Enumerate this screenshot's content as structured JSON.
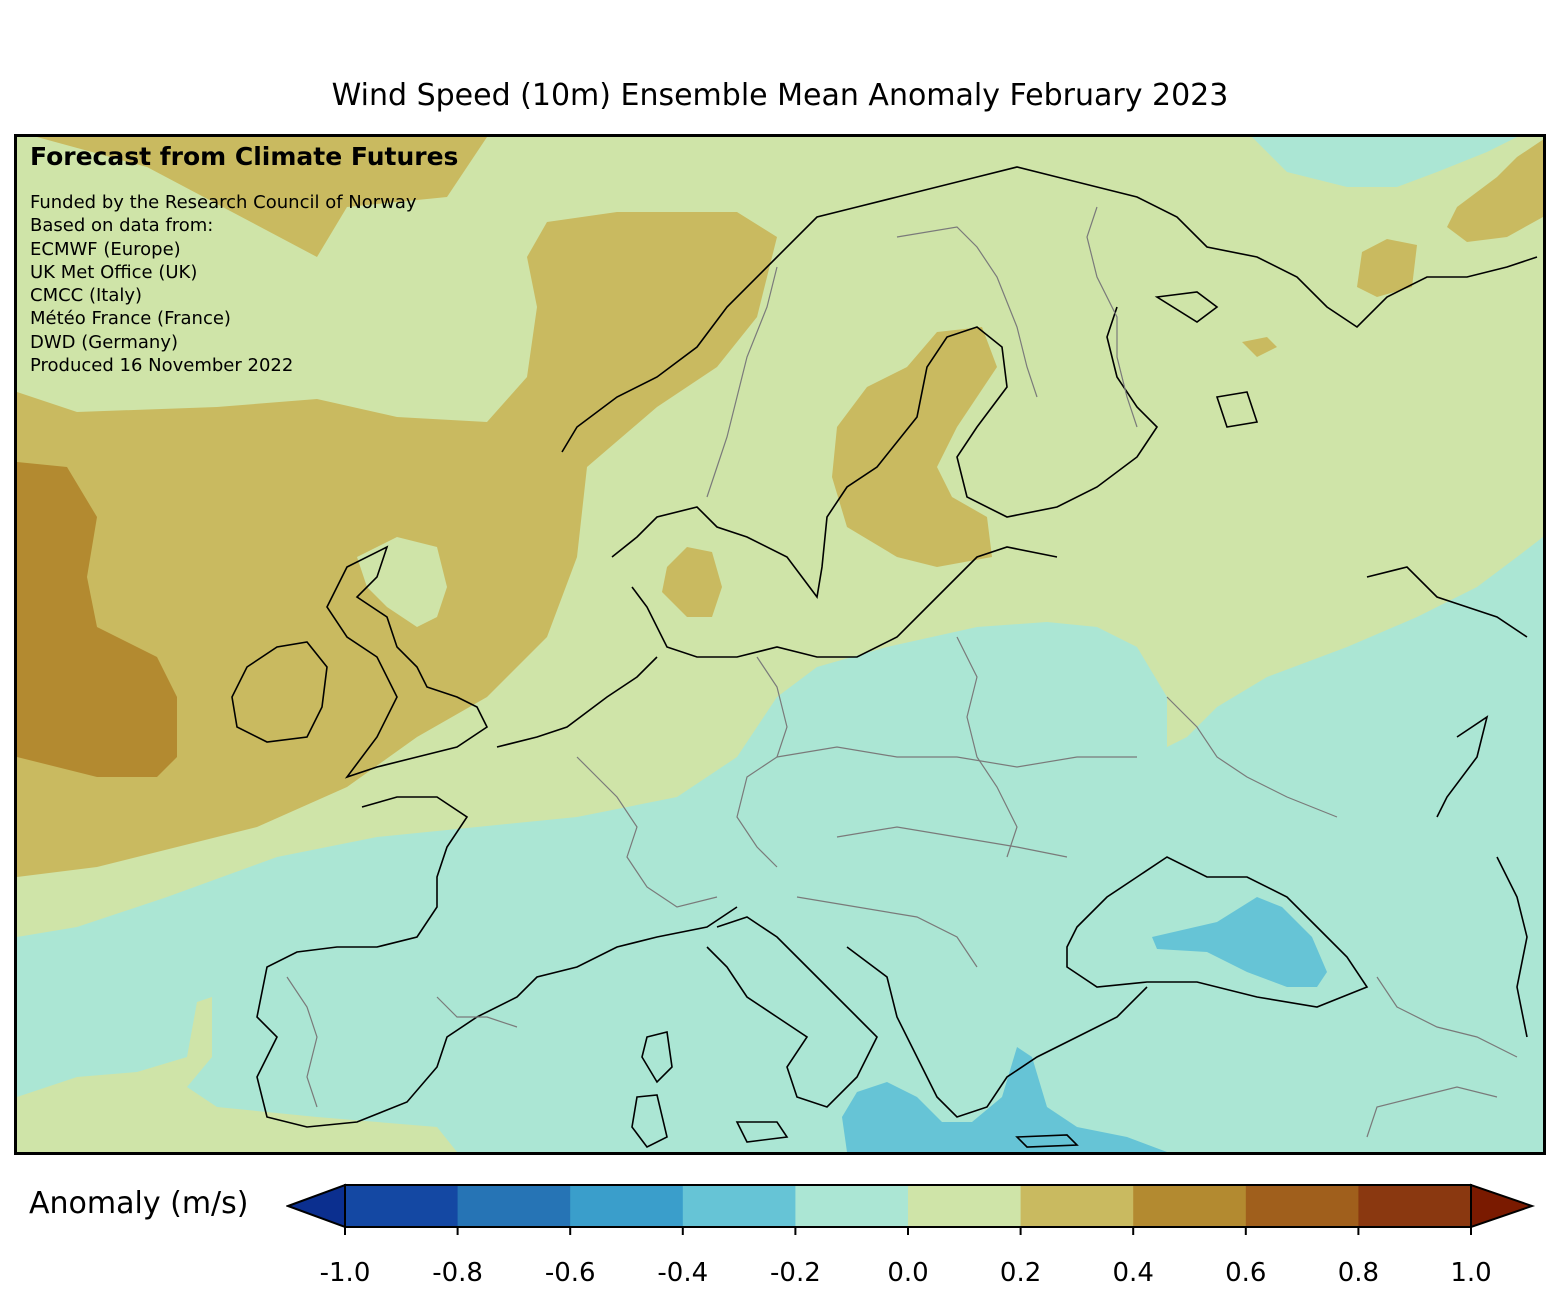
{
  "title": "Wind Speed (10m) Ensemble Mean Anomaly February 2023",
  "credits": {
    "heading": "Forecast from Climate Futures",
    "lines": [
      "Funded by the Research Council of Norway",
      "Based on data from:",
      "ECMWF (Europe)",
      "UK Met Office (UK)",
      "CMCC (Italy)",
      "Météo France (France)",
      "DWD (Germany)",
      "Produced 16 November 2022"
    ]
  },
  "colorbar": {
    "label": "Anomaly (m/s)",
    "ticks": [
      "-1.0",
      "-0.8",
      "-0.6",
      "-0.4",
      "-0.2",
      "0.0",
      "0.2",
      "0.4",
      "0.6",
      "0.8",
      "1.0"
    ],
    "colors": [
      "#0b2f8f",
      "#1448a3",
      "#2674b5",
      "#3a9ecb",
      "#66c4d6",
      "#abe6d4",
      "#cfe4a8",
      "#c9ba60",
      "#b38a30",
      "#a05f1c",
      "#8a3810",
      "#7a1a00"
    ],
    "extend": "both"
  },
  "map": {
    "region": "Europe",
    "legend_colors": {
      "neg_0_4_to_0_2": "#66c4d6",
      "neg_0_2_to_0": "#abe6d4",
      "0_to_0_2": "#cfe4a8",
      "0_2_to_0_4": "#c9ba60",
      "0_4_to_0_6": "#b38a30"
    }
  }
}
